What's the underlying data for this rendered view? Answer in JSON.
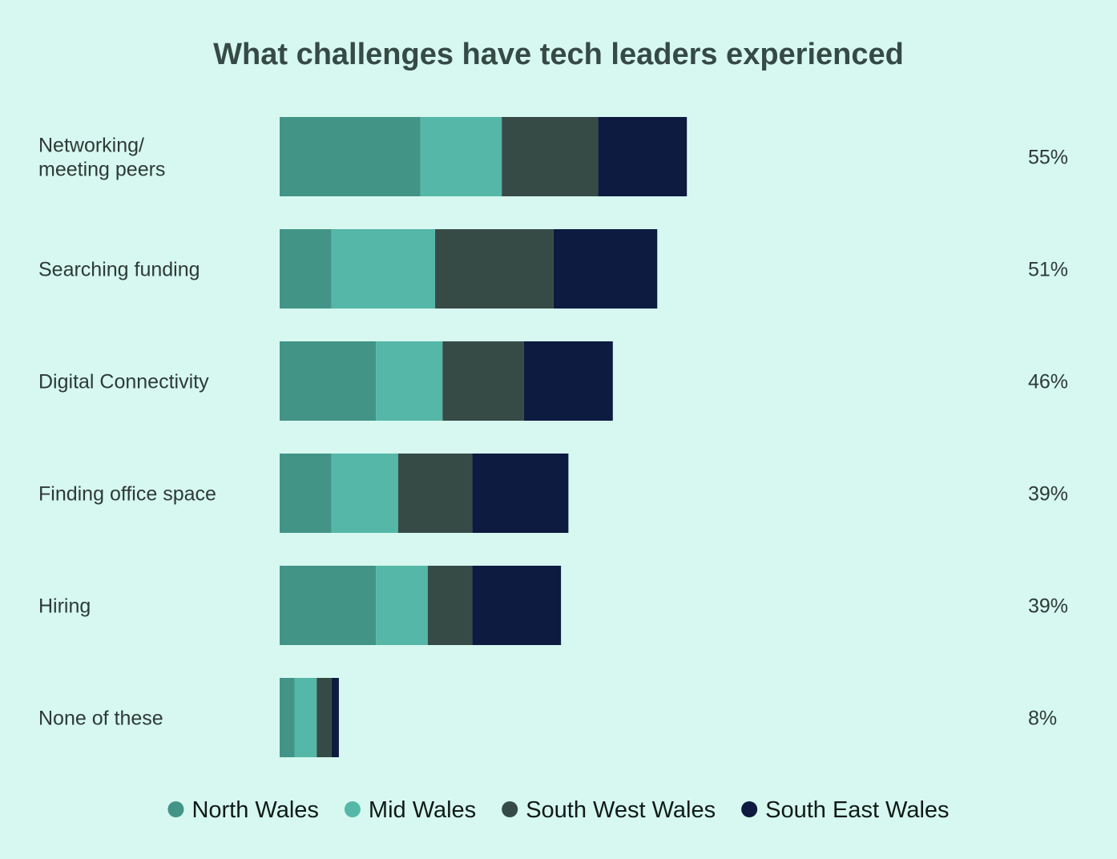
{
  "chart_data": {
    "type": "bar",
    "orientation": "horizontal",
    "stacked": true,
    "title": "What challenges have tech leaders experienced",
    "categories": [
      "Networking/\nmeeting peers",
      "Searching funding",
      "Digital Connectivity",
      "Finding office space",
      "Hiring",
      "None of these"
    ],
    "totals": [
      "55%",
      "51%",
      "46%",
      "39%",
      "39%",
      "8%"
    ],
    "series": [
      {
        "name": "North Wales",
        "color": "#429486",
        "values": [
          19,
          7,
          13,
          7,
          13,
          2
        ]
      },
      {
        "name": "Mid Wales",
        "color": "#55b7a7",
        "values": [
          11,
          14,
          9,
          9,
          7,
          3
        ]
      },
      {
        "name": "South West Wales",
        "color": "#374b46",
        "values": [
          13,
          16,
          11,
          10,
          6,
          2
        ]
      },
      {
        "name": "South East Wales",
        "color": "#0c1b3f",
        "values": [
          12,
          14,
          12,
          13,
          12,
          1
        ]
      }
    ],
    "xlim": [
      0,
      100
    ],
    "legend_position": "bottom",
    "grid": false
  }
}
